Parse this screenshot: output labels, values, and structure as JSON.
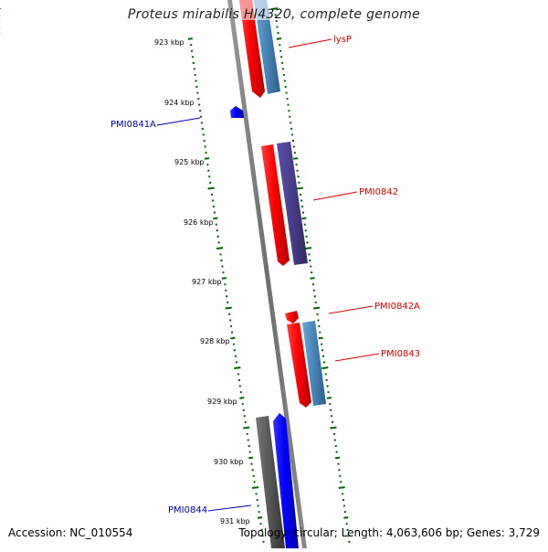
{
  "title": "Proteus mirabilis HI4320, complete genome",
  "footer": {
    "accession": "Accession: NC_010554",
    "topology": "Topology: circular; Length: 4,063,606 bp; Genes: 3,729"
  },
  "tick_labels": [
    "923 kbp",
    "924 kbp",
    "925 kbp",
    "926 kbp",
    "927 kbp",
    "928 kbp",
    "929 kbp",
    "930 kbp",
    "931 kbp"
  ],
  "genes": [
    {
      "name": "lysP",
      "color": "#dd0000"
    },
    {
      "name": "PMI0841A",
      "color": "#0000bb"
    },
    {
      "name": "PMI0842",
      "color": "#dd0000"
    },
    {
      "name": "PMI0842A",
      "color": "#dd0000"
    },
    {
      "name": "PMI0843",
      "color": "#dd0000"
    },
    {
      "name": "PMI0844",
      "color": "#0000bb"
    }
  ],
  "colors": {
    "forward_cds": "#ff0000",
    "reverse_cds": "#0000ff",
    "cog_blue": "#4682b4",
    "cog_purple": "#483d8b",
    "cog_gray": "#555555",
    "backbone": "#777777",
    "tick": "#006400"
  }
}
